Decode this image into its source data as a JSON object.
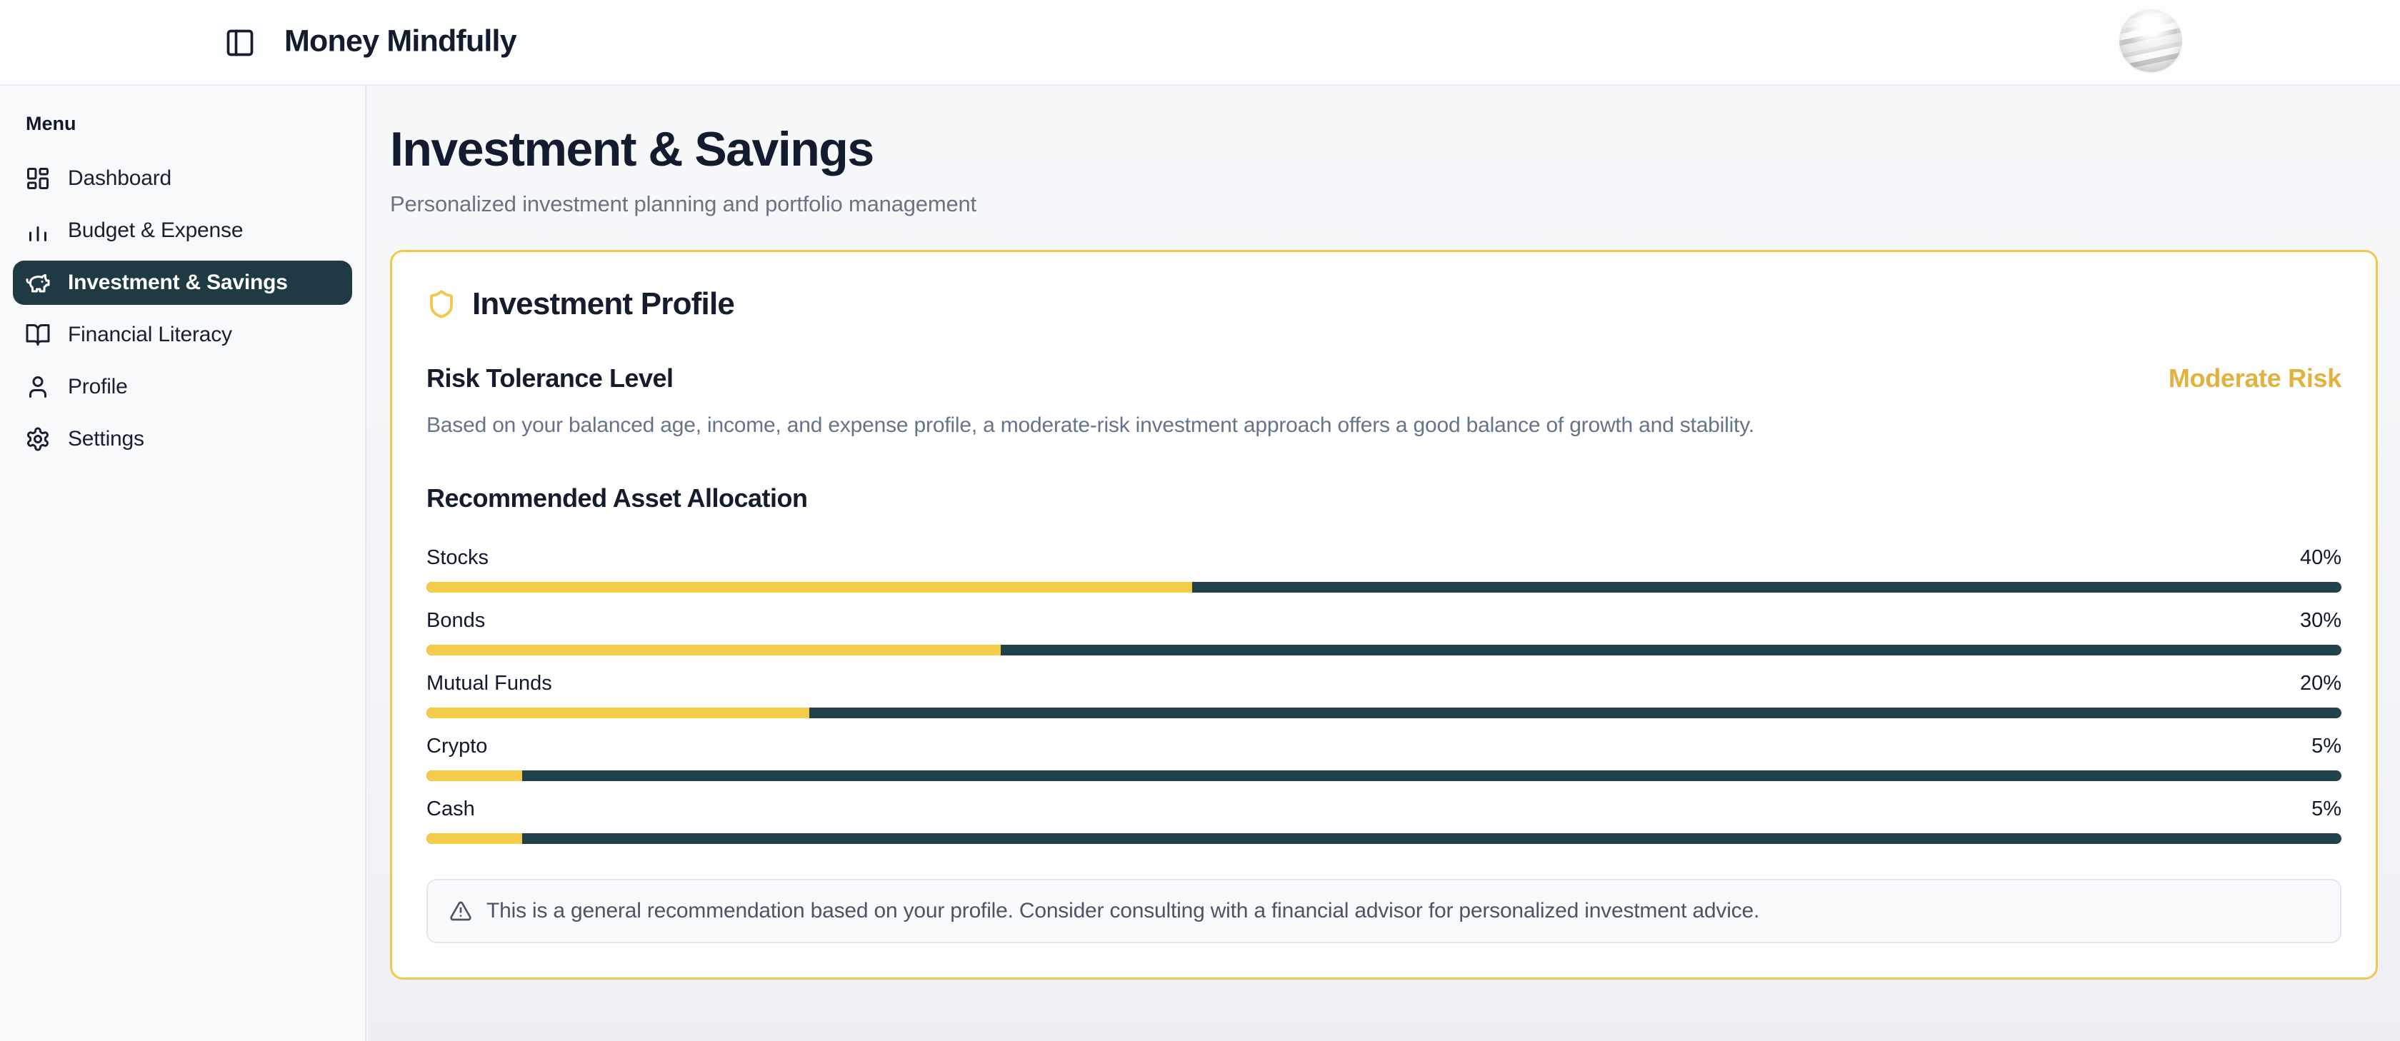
{
  "header": {
    "app_title": "Money Mindfully"
  },
  "sidebar": {
    "menu_label": "Menu",
    "items": [
      {
        "label": "Dashboard",
        "icon": "dashboard",
        "active": false
      },
      {
        "label": "Budget & Expense",
        "icon": "bar-chart",
        "active": false
      },
      {
        "label": "Investment & Savings",
        "icon": "piggy-bank",
        "active": true
      },
      {
        "label": "Financial Literacy",
        "icon": "book-open",
        "active": false
      },
      {
        "label": "Profile",
        "icon": "user",
        "active": false
      },
      {
        "label": "Settings",
        "icon": "gear",
        "active": false
      }
    ]
  },
  "page": {
    "title": "Investment & Savings",
    "subtitle": "Personalized investment planning and portfolio management"
  },
  "investment_profile": {
    "title": "Investment Profile",
    "risk_heading": "Risk Tolerance Level",
    "risk_level": "Moderate Risk",
    "risk_description": "Based on your balanced age, income, and expense profile, a moderate-risk investment approach offers a good balance of growth and stability.",
    "allocation_heading": "Recommended Asset Allocation",
    "allocation": [
      {
        "label": "Stocks",
        "percent": 40
      },
      {
        "label": "Bonds",
        "percent": 30
      },
      {
        "label": "Mutual Funds",
        "percent": 20
      },
      {
        "label": "Crypto",
        "percent": 5
      },
      {
        "label": "Cash",
        "percent": 5
      }
    ],
    "disclaimer": "This is a general recommendation based on your profile. Consider consulting with a financial advisor for personalized investment advice."
  },
  "colors": {
    "accent_yellow": "#f2c84c",
    "bar_fill": "#f4cc49",
    "bar_track": "#21414b",
    "active_nav_bg": "#1f3a43",
    "risk_level_text": "#e2b13e",
    "heading_text": "#131c2e"
  }
}
